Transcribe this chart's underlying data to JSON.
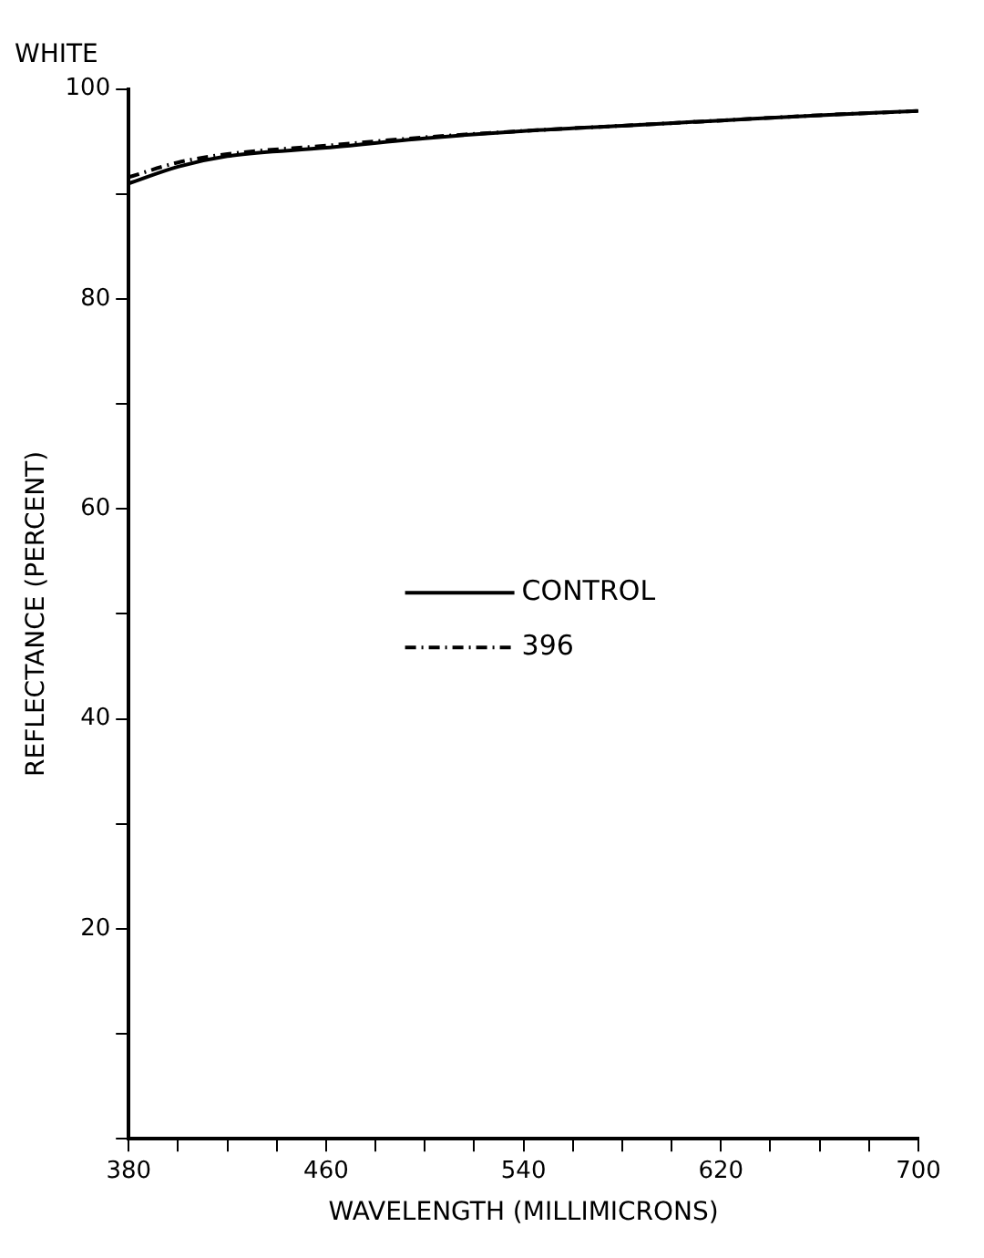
{
  "chart_data": {
    "type": "line",
    "title": "WHITE",
    "xlabel": "WAVELENGTH (MILLIMICRONS)",
    "ylabel": "REFLECTANCE (PERCENT)",
    "xlim": [
      380,
      700
    ],
    "xticks": [
      380,
      {
        "value": 400,
        "label": null
      },
      {
        "value": 420,
        "label": null
      },
      {
        "value": 440,
        "label": null
      },
      460,
      {
        "value": 480,
        "label": null
      },
      {
        "value": 500,
        "label": null
      },
      {
        "value": 520,
        "label": null
      },
      540,
      {
        "value": 560,
        "label": null
      },
      {
        "value": 580,
        "label": null
      },
      {
        "value": 600,
        "label": null
      },
      620,
      {
        "value": 640,
        "label": null
      },
      {
        "value": 660,
        "label": null
      },
      {
        "value": 680,
        "label": null
      },
      700
    ],
    "ylim": [
      0,
      100
    ],
    "yticks": [
      {
        "value": 0,
        "label": null
      },
      {
        "value": 10,
        "label": null
      },
      20,
      {
        "value": 30,
        "label": null
      },
      40,
      {
        "value": 50,
        "label": null
      },
      60,
      {
        "value": 70,
        "label": null
      },
      80,
      {
        "value": 90,
        "label": null
      },
      100
    ],
    "grid": false,
    "legend": "center",
    "marker": "none",
    "series": [
      {
        "name": "CONTROL",
        "color": "#000000",
        "line_style": "solid",
        "x": [
          380,
          400,
          420,
          460,
          500,
          540,
          580,
          620,
          660,
          700
        ],
        "values": [
          91,
          92.6,
          93.6,
          94.4,
          95.3,
          96,
          96.5,
          97,
          97.5,
          97.9
        ]
      },
      {
        "name": "396",
        "color": "#000000",
        "line_style": "dashed",
        "x": [
          380,
          400,
          420,
          460,
          500,
          540,
          580,
          620,
          660,
          700
        ],
        "values": [
          91.6,
          93,
          93.8,
          94.6,
          95.4,
          96,
          96.5,
          97,
          97.5,
          97.9
        ]
      }
    ]
  }
}
